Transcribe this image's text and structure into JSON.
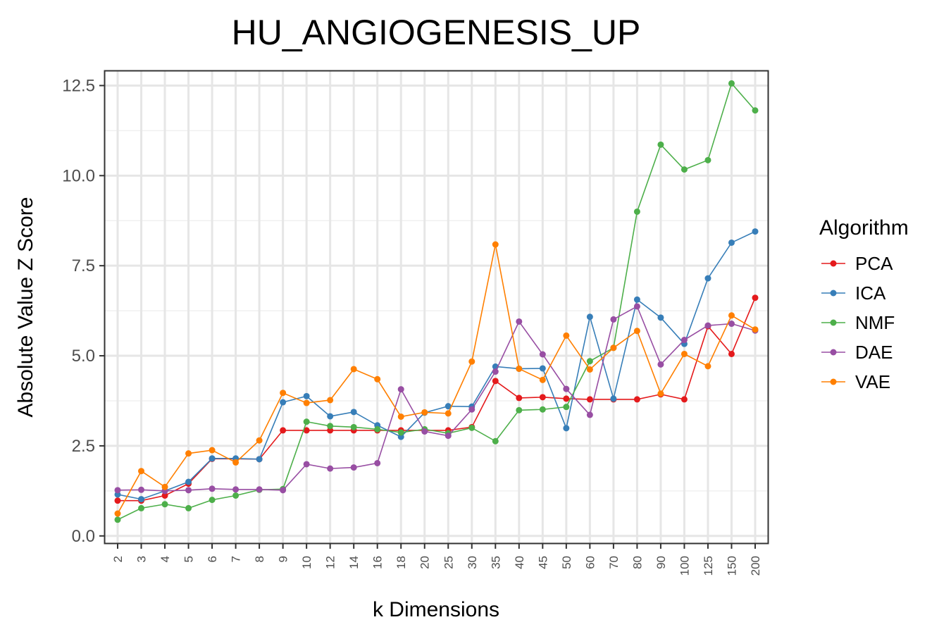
{
  "chart_data": {
    "type": "line",
    "title": "HU_ANGIOGENESIS_UP",
    "xlabel": "k Dimensions",
    "ylabel": "Absolute Value Z Score",
    "categories": [
      "2",
      "3",
      "4",
      "5",
      "6",
      "7",
      "8",
      "9",
      "10",
      "12",
      "14",
      "16",
      "18",
      "20",
      "25",
      "30",
      "35",
      "40",
      "45",
      "50",
      "60",
      "70",
      "80",
      "90",
      "100",
      "125",
      "150",
      "200"
    ],
    "ylim": [
      -0.2,
      12.9
    ],
    "yticks": [
      0.0,
      2.5,
      5.0,
      7.5,
      10.0,
      12.5
    ],
    "ytick_labels": [
      "0.0",
      "2.5",
      "5.0",
      "7.5",
      "10.0",
      "12.5"
    ],
    "grid": true,
    "legend": {
      "title": "Algorithm",
      "position": "right"
    },
    "series": [
      {
        "name": "PCA",
        "color": "#E41A1C",
        "values": [
          0.98,
          0.98,
          1.12,
          1.45,
          2.14,
          2.14,
          2.13,
          2.93,
          2.93,
          2.93,
          2.93,
          2.93,
          2.93,
          2.93,
          2.93,
          3.02,
          4.3,
          3.83,
          3.85,
          3.81,
          3.79,
          3.79,
          3.79,
          3.93,
          3.79,
          5.82,
          5.05,
          6.61
        ]
      },
      {
        "name": "ICA",
        "color": "#377EB8",
        "values": [
          1.15,
          1.02,
          1.25,
          1.5,
          2.15,
          2.15,
          2.13,
          3.71,
          3.88,
          3.32,
          3.44,
          3.07,
          2.75,
          3.42,
          3.6,
          3.59,
          4.7,
          4.64,
          4.65,
          2.99,
          6.08,
          3.81,
          6.56,
          6.06,
          5.33,
          7.15,
          8.14,
          8.45
        ]
      },
      {
        "name": "NMF",
        "color": "#4DAF4A",
        "values": [
          0.45,
          0.77,
          0.88,
          0.77,
          1.0,
          1.12,
          1.28,
          1.3,
          3.17,
          3.05,
          3.02,
          2.96,
          2.87,
          2.96,
          2.85,
          3.0,
          2.63,
          3.49,
          3.51,
          3.58,
          4.85,
          5.22,
          9.0,
          10.86,
          10.17,
          10.43,
          12.56,
          11.81
        ]
      },
      {
        "name": "DAE",
        "color": "#984EA3",
        "values": [
          1.27,
          1.28,
          1.25,
          1.27,
          1.31,
          1.29,
          1.29,
          1.27,
          1.99,
          1.87,
          1.9,
          2.02,
          4.07,
          2.9,
          2.78,
          3.51,
          4.56,
          5.95,
          5.04,
          4.08,
          3.36,
          6.01,
          6.37,
          4.76,
          5.44,
          5.84,
          5.89,
          5.7
        ]
      },
      {
        "name": "VAE",
        "color": "#FF7F00",
        "values": [
          0.62,
          1.8,
          1.36,
          2.29,
          2.38,
          2.04,
          2.65,
          3.97,
          3.69,
          3.77,
          4.63,
          4.35,
          3.31,
          3.43,
          3.4,
          4.84,
          8.09,
          4.64,
          4.33,
          5.56,
          4.62,
          5.22,
          5.69,
          3.95,
          5.05,
          4.71,
          6.12,
          5.73
        ]
      }
    ]
  }
}
